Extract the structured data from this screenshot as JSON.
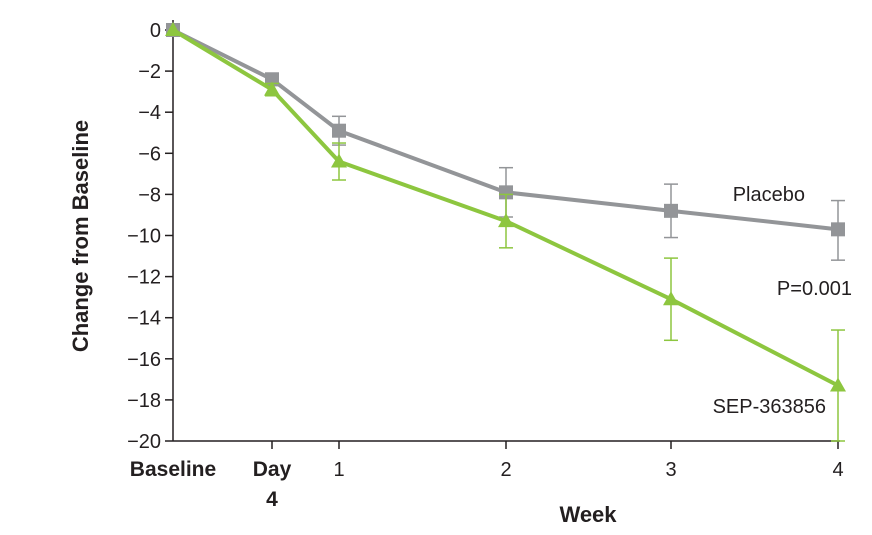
{
  "chart_data": {
    "type": "line",
    "ylabel": "Change from Baseline",
    "xlabel": "Week",
    "ylim": [
      -20,
      0
    ],
    "yticks": [
      "0",
      "−2",
      "−4",
      "−6",
      "−8",
      "−10",
      "−12",
      "−14",
      "−16",
      "−18",
      "−20"
    ],
    "ytick_values": [
      0,
      -2,
      -4,
      -6,
      -8,
      -10,
      -12,
      -14,
      -16,
      -18,
      -20
    ],
    "x_categories": [
      {
        "label": "Baseline",
        "label2": "",
        "bold": true
      },
      {
        "label": "Day",
        "label2": "4",
        "bold": true
      },
      {
        "label": "1",
        "label2": "",
        "bold": false
      },
      {
        "label": "2",
        "label2": "",
        "bold": false
      },
      {
        "label": "3",
        "label2": "",
        "bold": false
      },
      {
        "label": "4",
        "label2": "",
        "bold": false
      }
    ],
    "x_weeks": [
      0,
      0.571,
      1,
      2,
      3,
      4
    ],
    "series": [
      {
        "name": "Placebo",
        "color": "#939598",
        "marker": "square",
        "values": [
          0,
          -2.4,
          -4.9,
          -7.9,
          -8.8,
          -9.7
        ],
        "err_low": [
          0,
          -2.7,
          -5.6,
          -9.1,
          -10.1,
          -11.2
        ],
        "err_high": [
          0,
          -2.1,
          -4.2,
          -6.7,
          -7.5,
          -8.3
        ]
      },
      {
        "name": "SEP-363856",
        "color": "#8dc63f",
        "marker": "triangle",
        "values": [
          0,
          -2.9,
          -6.4,
          -9.3,
          -13.1,
          -17.3
        ],
        "err_low": [
          0,
          -3.2,
          -7.3,
          -10.6,
          -15.1,
          -20.0
        ],
        "err_high": [
          0,
          -2.6,
          -5.5,
          -8.0,
          -11.1,
          -14.6
        ]
      }
    ],
    "annotations": {
      "placebo_label": "Placebo",
      "pvalue_label": "P=0.001",
      "drug_label": "SEP-363856"
    }
  }
}
